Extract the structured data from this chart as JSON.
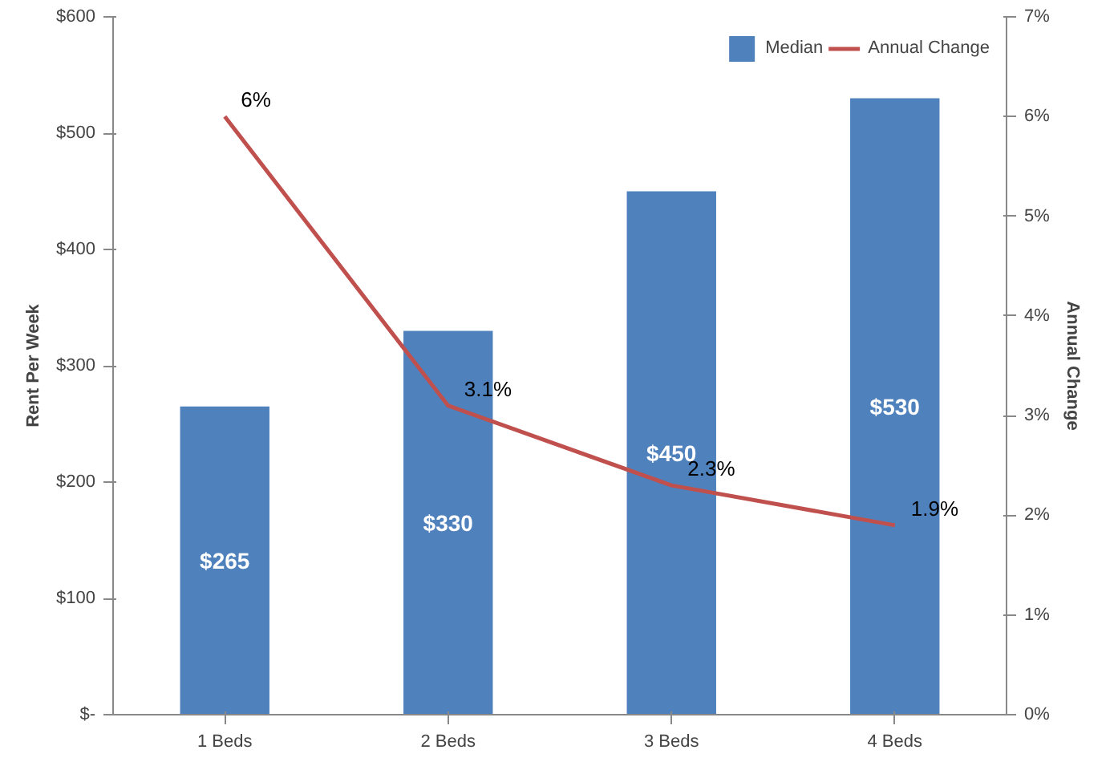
{
  "chart_data": {
    "type": "bar",
    "categories": [
      "1 Beds",
      "2 Beds",
      "3 Beds",
      "4 Beds"
    ],
    "ylabel": "Rent Per Week",
    "y2label": "Annual Change",
    "series": [
      {
        "name": "Median",
        "color": "#4f81bd",
        "values": [
          265,
          330,
          450,
          530
        ],
        "value_labels": [
          "$265",
          "$330",
          "$450",
          "$530"
        ]
      },
      {
        "name": "Annual Change",
        "type": "line",
        "axis": "y2",
        "color": "#c0504d",
        "values": [
          6,
          3.1,
          2.3,
          1.9
        ],
        "value_labels": [
          "6%",
          "3.1%",
          "2.3%",
          "1.9%"
        ]
      }
    ],
    "ylim": [
      0,
      600
    ],
    "yticks": [
      {
        "value": 0,
        "label": "$-"
      },
      {
        "value": 100,
        "label": "$100"
      },
      {
        "value": 200,
        "label": "$200"
      },
      {
        "value": 300,
        "label": "$300"
      },
      {
        "value": 400,
        "label": "$400"
      },
      {
        "value": 500,
        "label": "$500"
      },
      {
        "value": 600,
        "label": "$600"
      }
    ],
    "y2lim": [
      0,
      7
    ],
    "y2ticks": [
      {
        "value": 0,
        "label": "0%"
      },
      {
        "value": 1,
        "label": "1%"
      },
      {
        "value": 2,
        "label": "2%"
      },
      {
        "value": 3,
        "label": "3%"
      },
      {
        "value": 4,
        "label": "4%"
      },
      {
        "value": 5,
        "label": "5%"
      },
      {
        "value": 6,
        "label": "6%"
      },
      {
        "value": 7,
        "label": "7%"
      }
    ],
    "grid": false,
    "legend": "top right",
    "marker": "none",
    "line_style": "solid"
  }
}
